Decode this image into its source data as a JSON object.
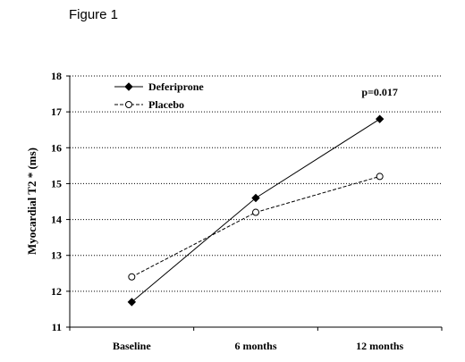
{
  "figure_label": "Figure 1",
  "chart_data": {
    "type": "line",
    "categories": [
      "Baseline",
      "6 months",
      "12 months"
    ],
    "series": [
      {
        "name": "Deferiprone",
        "values": [
          11.7,
          14.6,
          16.8
        ],
        "style": "solid",
        "marker": "filled-diamond",
        "color": "#000000"
      },
      {
        "name": "Placebo",
        "values": [
          12.4,
          14.2,
          15.2
        ],
        "style": "dashed",
        "marker": "open-circle",
        "color": "#000000"
      }
    ],
    "ylabel": "Myocardial T2 * (ms)",
    "xlabel": "",
    "ylim": [
      11,
      18
    ],
    "yticks": [
      11,
      12,
      13,
      14,
      15,
      16,
      17,
      18
    ],
    "grid": "horizontal-dotted",
    "legend_position": "top-left",
    "annotation": {
      "text": "p=0.017",
      "at_category": "12 months"
    }
  }
}
